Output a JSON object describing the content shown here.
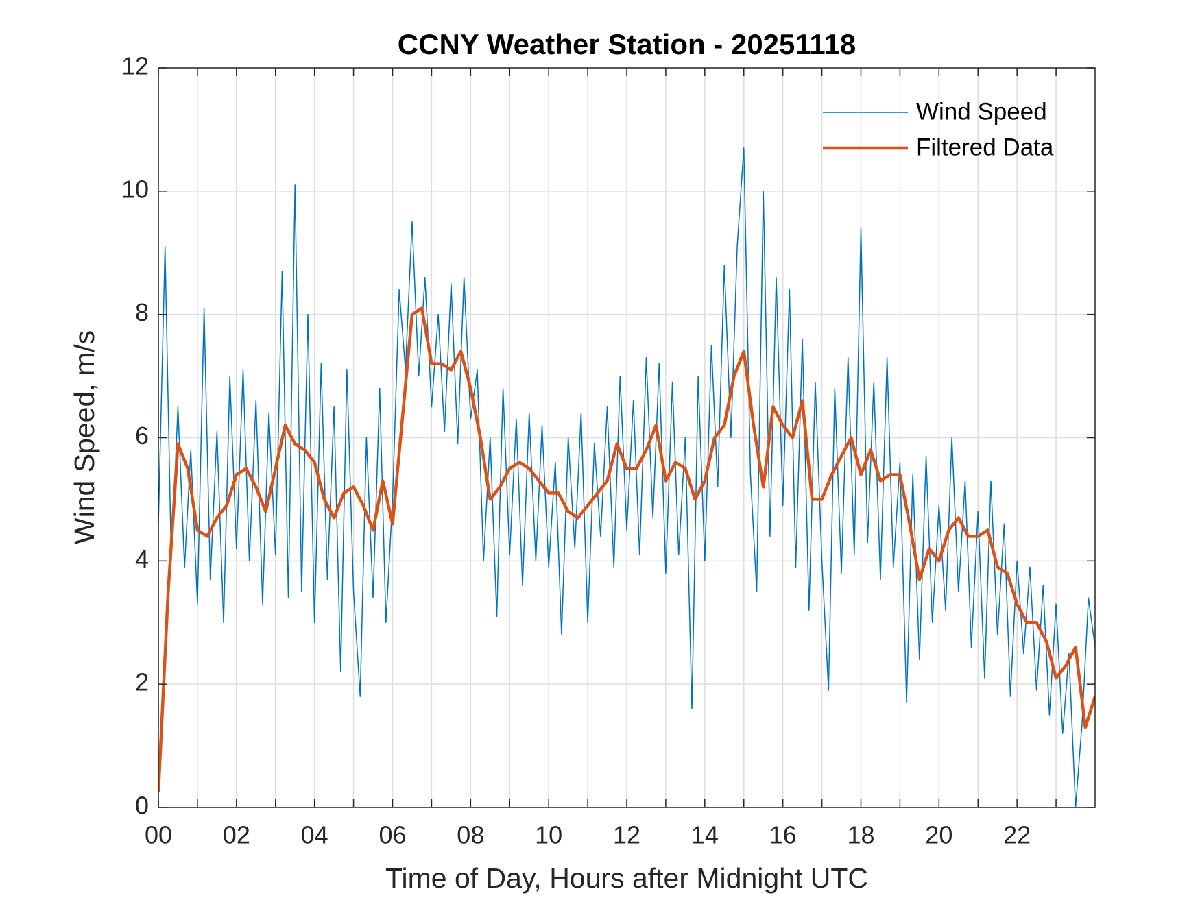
{
  "chart_data": {
    "type": "line",
    "title": "CCNY Weather Station - 20251118",
    "x_label": "Time of Day, Hours after Midnight UTC",
    "y_label": "Wind Speed, m/s",
    "xlim": [
      0,
      24
    ],
    "xticks": [
      {
        "value": 0,
        "label": "00"
      },
      {
        "value": 2,
        "label": "02"
      },
      {
        "value": 4,
        "label": "04"
      },
      {
        "value": 6,
        "label": "06"
      },
      {
        "value": 8,
        "label": "08"
      },
      10,
      12,
      14,
      16,
      18,
      20,
      22
    ],
    "xminorticks": [
      1,
      3,
      5,
      7,
      9,
      11,
      13,
      15,
      17,
      19,
      21,
      23
    ],
    "ylim": [
      0,
      12
    ],
    "yticks": [
      0,
      2,
      4,
      6,
      8,
      10,
      12
    ],
    "grid": true,
    "legend": "upper right",
    "series": [
      {
        "name": "Wind Speed",
        "color": "#0072BD",
        "width": 1.5,
        "x": [
          0,
          0.17,
          0.33,
          0.5,
          0.67,
          0.83,
          1,
          1.17,
          1.33,
          1.5,
          1.67,
          1.83,
          2,
          2.17,
          2.33,
          2.5,
          2.67,
          2.83,
          3,
          3.17,
          3.33,
          3.5,
          3.67,
          3.83,
          4,
          4.17,
          4.33,
          4.5,
          4.67,
          4.83,
          5,
          5.17,
          5.33,
          5.5,
          5.67,
          5.83,
          6,
          6.17,
          6.33,
          6.5,
          6.67,
          6.83,
          7,
          7.17,
          7.33,
          7.5,
          7.67,
          7.83,
          8,
          8.17,
          8.33,
          8.5,
          8.67,
          8.83,
          9,
          9.17,
          9.33,
          9.5,
          9.67,
          9.83,
          10,
          10.17,
          10.33,
          10.5,
          10.67,
          10.83,
          11,
          11.17,
          11.33,
          11.5,
          11.67,
          11.83,
          12,
          12.17,
          12.33,
          12.5,
          12.67,
          12.83,
          13,
          13.17,
          13.33,
          13.5,
          13.67,
          13.83,
          14,
          14.17,
          14.33,
          14.5,
          14.67,
          14.83,
          15,
          15.17,
          15.33,
          15.5,
          15.67,
          15.83,
          16,
          16.17,
          16.33,
          16.5,
          16.67,
          16.83,
          17,
          17.17,
          17.33,
          17.5,
          17.67,
          17.83,
          18,
          18.17,
          18.33,
          18.5,
          18.67,
          18.83,
          19,
          19.17,
          19.33,
          19.5,
          19.67,
          19.83,
          20,
          20.17,
          20.33,
          20.5,
          20.67,
          20.83,
          21,
          21.17,
          21.33,
          21.5,
          21.67,
          21.83,
          22,
          22.17,
          22.33,
          22.5,
          22.67,
          22.83,
          23,
          23.17,
          23.33,
          23.5,
          23.67,
          23.83,
          24
        ],
        "values": [
          4.6,
          9.1,
          4.0,
          6.5,
          3.9,
          5.8,
          3.3,
          8.1,
          3.7,
          6.1,
          3.0,
          7.0,
          4.2,
          7.1,
          4.0,
          6.6,
          3.3,
          6.4,
          4.1,
          8.7,
          3.4,
          10.1,
          3.5,
          8.0,
          3.0,
          7.2,
          3.7,
          6.5,
          2.2,
          7.1,
          3.5,
          1.8,
          6.0,
          3.4,
          6.8,
          3.0,
          5.0,
          8.4,
          7.1,
          9.5,
          7.0,
          8.6,
          6.5,
          8.0,
          6.1,
          8.5,
          5.9,
          8.6,
          6.3,
          7.1,
          4.0,
          6.0,
          3.1,
          6.8,
          4.1,
          6.3,
          3.6,
          6.4,
          4.0,
          6.2,
          3.9,
          5.6,
          2.8,
          6.0,
          4.2,
          6.4,
          3.0,
          5.9,
          4.4,
          6.5,
          3.9,
          7.0,
          4.5,
          6.6,
          4.1,
          7.3,
          4.7,
          7.2,
          3.8,
          6.9,
          4.1,
          6.0,
          1.6,
          7.0,
          4.0,
          7.5,
          5.2,
          8.8,
          6.0,
          9.1,
          10.7,
          5.4,
          3.5,
          10.0,
          4.4,
          8.6,
          4.9,
          8.4,
          3.9,
          7.6,
          3.2,
          6.9,
          4.0,
          1.9,
          6.8,
          3.8,
          7.3,
          4.1,
          9.4,
          4.3,
          6.9,
          3.7,
          7.3,
          3.9,
          5.6,
          1.7,
          5.4,
          2.4,
          5.7,
          3.0,
          4.9,
          3.2,
          6.0,
          3.5,
          5.3,
          2.6,
          4.8,
          2.1,
          5.3,
          2.8,
          4.6,
          1.8,
          4.0,
          2.5,
          3.9,
          1.9,
          3.6,
          1.5,
          3.3,
          1.2,
          2.5,
          0.0,
          1.4,
          3.4,
          2.6
        ]
      },
      {
        "name": "Filtered Data",
        "color": "#D95319",
        "width": 4.5,
        "x": [
          0,
          0.25,
          0.5,
          0.75,
          1,
          1.25,
          1.5,
          1.75,
          2,
          2.25,
          2.5,
          2.75,
          3,
          3.25,
          3.5,
          3.75,
          4,
          4.25,
          4.5,
          4.75,
          5,
          5.25,
          5.5,
          5.75,
          6,
          6.25,
          6.5,
          6.75,
          7,
          7.25,
          7.5,
          7.75,
          8,
          8.25,
          8.5,
          8.75,
          9,
          9.25,
          9.5,
          9.75,
          10,
          10.25,
          10.5,
          10.75,
          11,
          11.25,
          11.5,
          11.75,
          12,
          12.25,
          12.5,
          12.75,
          13,
          13.25,
          13.5,
          13.75,
          14,
          14.25,
          14.5,
          14.75,
          15,
          15.25,
          15.5,
          15.75,
          16,
          16.25,
          16.5,
          16.75,
          17,
          17.25,
          17.5,
          17.75,
          18,
          18.25,
          18.5,
          18.75,
          19,
          19.25,
          19.5,
          19.75,
          20,
          20.25,
          20.5,
          20.75,
          21,
          21.25,
          21.5,
          21.75,
          22,
          22.25,
          22.5,
          22.75,
          23,
          23.25,
          23.5,
          23.75,
          24
        ],
        "values": [
          0.25,
          3.5,
          5.9,
          5.5,
          4.5,
          4.4,
          4.7,
          4.9,
          5.4,
          5.5,
          5.2,
          4.8,
          5.5,
          6.2,
          5.9,
          5.8,
          5.6,
          5.0,
          4.7,
          5.1,
          5.2,
          4.9,
          4.5,
          5.3,
          4.6,
          6.3,
          8.0,
          8.1,
          7.2,
          7.2,
          7.1,
          7.4,
          6.8,
          6.0,
          5.0,
          5.2,
          5.5,
          5.6,
          5.5,
          5.3,
          5.1,
          5.1,
          4.8,
          4.7,
          4.9,
          5.1,
          5.3,
          5.9,
          5.5,
          5.5,
          5.8,
          6.2,
          5.3,
          5.6,
          5.5,
          5.0,
          5.3,
          6.0,
          6.2,
          7.0,
          7.4,
          6.2,
          5.2,
          6.5,
          6.2,
          6.0,
          6.6,
          5.0,
          5.0,
          5.4,
          5.7,
          6.0,
          5.4,
          5.8,
          5.3,
          5.4,
          5.4,
          4.6,
          3.7,
          4.2,
          4.0,
          4.5,
          4.7,
          4.4,
          4.4,
          4.5,
          3.9,
          3.8,
          3.3,
          3.0,
          3.0,
          2.7,
          2.1,
          2.3,
          2.6,
          1.3,
          1.8
        ]
      }
    ]
  }
}
